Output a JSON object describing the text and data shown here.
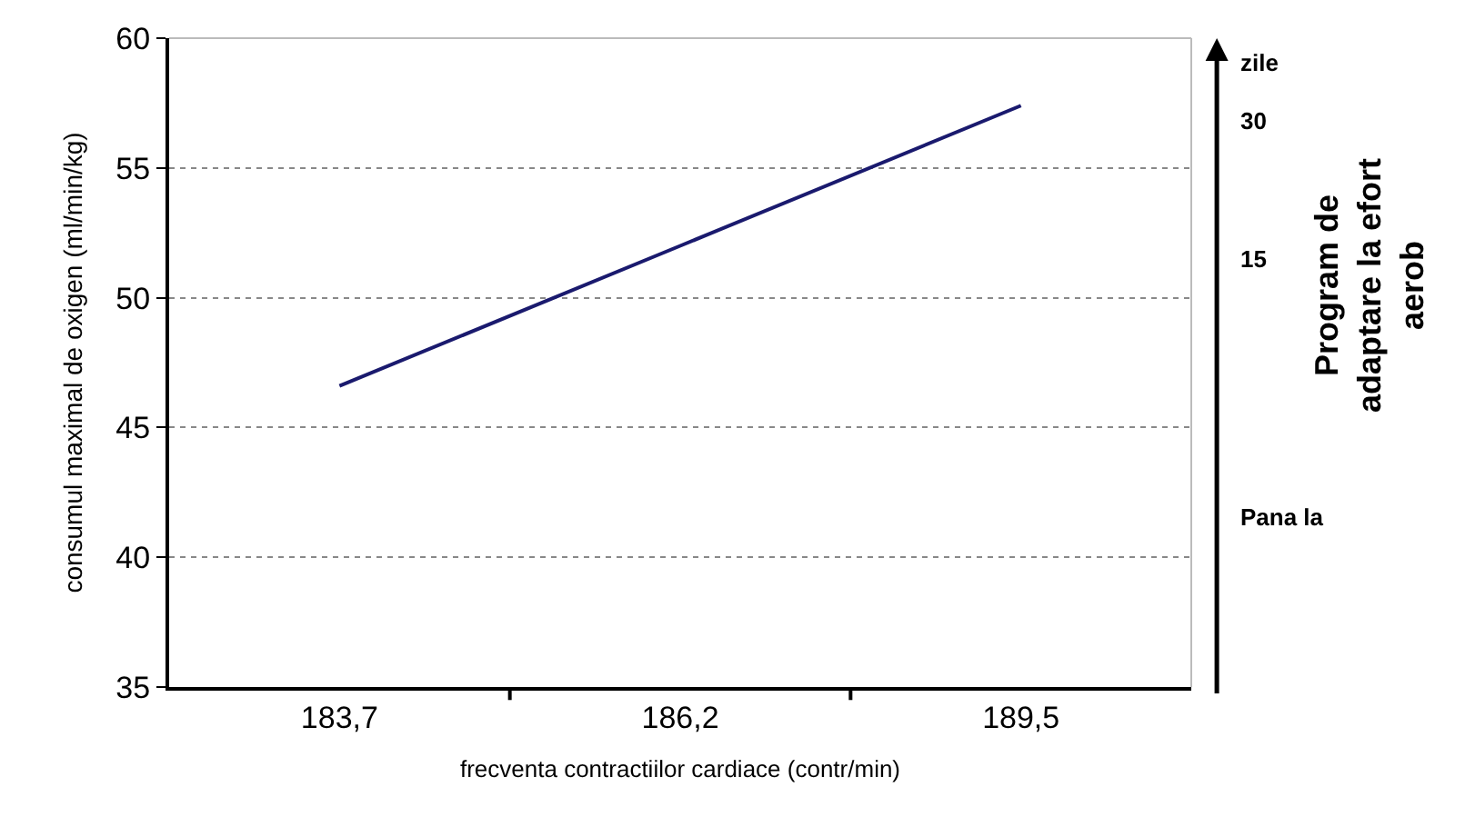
{
  "chart_data": {
    "type": "line",
    "xlabel": "frecventa contractiilor cardiace (contr/min)",
    "ylabel": "consumul maximal de oxigen (ml/min/kg)",
    "categories": [
      "183,7",
      "186,2",
      "189,5"
    ],
    "series": [
      {
        "color": "#1a1a6e",
        "values": [
          46.6,
          52.0,
          57.4
        ]
      }
    ],
    "ylim": [
      35,
      60
    ],
    "yticks": [
      35,
      40,
      45,
      50,
      55,
      60
    ],
    "grid": "y",
    "marker": "none",
    "line_style": "solid",
    "annotations": [
      "zile",
      "30",
      "15",
      "Pana la",
      "Program de adaptare la efort aerob"
    ]
  }
}
